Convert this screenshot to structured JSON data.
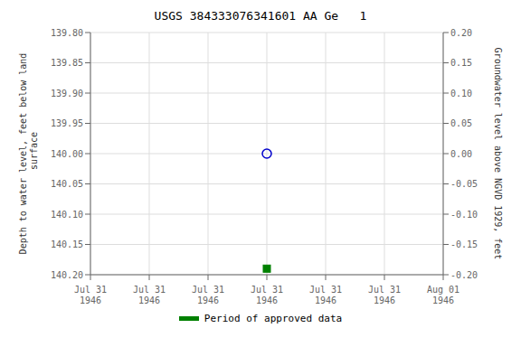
{
  "chart_data": {
    "type": "scatter",
    "title": "USGS 384333076341601 AA Ge   1",
    "categories": [
      "Jul 31\n1946",
      "Jul 31\n1946",
      "Jul 31\n1946",
      "Jul 31\n1946",
      "Jul 31\n1946",
      "Jul 31\n1946",
      "Aug 01\n1946"
    ],
    "series": [
      {
        "color": "#0000cc",
        "marker": "circle",
        "values": [
          null,
          null,
          null,
          140.0,
          null,
          null,
          null
        ]
      },
      {
        "name": "Period of approved data",
        "color": "#008000",
        "marker": "square",
        "values": [
          null,
          null,
          null,
          140.19,
          null,
          null,
          null
        ]
      }
    ],
    "y_label": "Depth to water level, feet below land\n surface",
    "y2_label": "Groundwater level above NGVD 1929, feet",
    "ylim": [
      140.2,
      139.8
    ],
    "yticks": [
      {
        "value": 139.8,
        "label": "139.80"
      },
      {
        "value": 139.85,
        "label": "139.85"
      },
      {
        "value": 139.9,
        "label": "139.90"
      },
      {
        "value": 139.95,
        "label": "139.95"
      },
      {
        "value": 140.0,
        "label": "140.00"
      },
      {
        "value": 140.05,
        "label": "140.05"
      },
      {
        "value": 140.1,
        "label": "140.10"
      },
      {
        "value": 140.15,
        "label": "140.15"
      },
      {
        "value": 140.2,
        "label": "140.20"
      }
    ],
    "y2lim": [
      -0.2,
      0.2
    ],
    "y2ticks": [
      {
        "value": 0.2,
        "label": "0.20"
      },
      {
        "value": 0.15,
        "label": "0.15"
      },
      {
        "value": 0.1,
        "label": "0.10"
      },
      {
        "value": 0.05,
        "label": "0.05"
      },
      {
        "value": 0.0,
        "label": "0.00"
      },
      {
        "value": -0.05,
        "label": "-0.05"
      },
      {
        "value": -0.1,
        "label": "-0.10"
      },
      {
        "value": -0.15,
        "label": "-0.15"
      },
      {
        "value": -0.2,
        "label": "-0.20"
      }
    ],
    "grid": true,
    "legend": "bottom"
  }
}
